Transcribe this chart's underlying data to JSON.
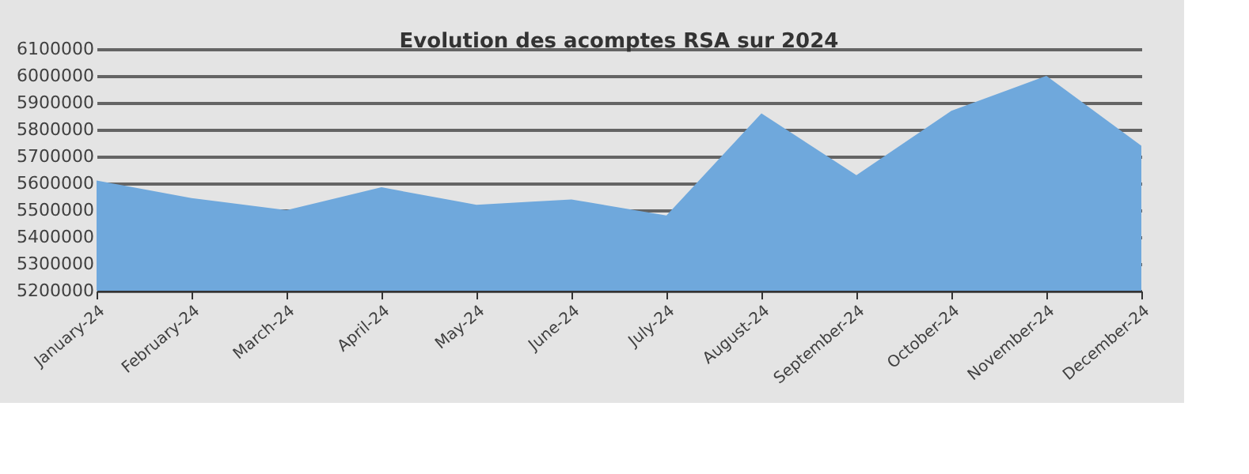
{
  "chart_data": {
    "type": "area",
    "title": "Evolution des acomptes RSA sur 2024",
    "categories": [
      "January-24",
      "February-24",
      "March-24",
      "April-24",
      "May-24",
      "June-24",
      "July-24",
      "August-24",
      "September-24",
      "October-24",
      "November-24",
      "December-24"
    ],
    "series": [
      {
        "color": "#6fa8dc",
        "values": [
          5610000,
          5545000,
          5500000,
          5585000,
          5520000,
          5540000,
          5480000,
          5860000,
          5630000,
          5870000,
          6000000,
          5740000
        ]
      }
    ],
    "ylim": [
      5200000,
      6100000
    ],
    "yticks": [
      5200000,
      5300000,
      5400000,
      5500000,
      5600000,
      5700000,
      5800000,
      5900000,
      6000000,
      6100000
    ],
    "grid": "y"
  }
}
